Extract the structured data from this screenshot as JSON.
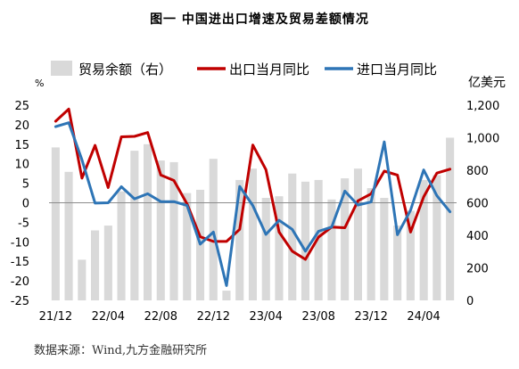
{
  "chart_data": {
    "type": "bar",
    "title": "图一  中国进出口增速及贸易差额情况",
    "source": "数据来源：Wind,九方金融研究所",
    "left_axis": {
      "unit": "%",
      "ylim": [
        -25,
        25
      ],
      "ticks": [
        "25",
        "20",
        "15",
        "10",
        "5",
        "0",
        "-5",
        "-10",
        "-15",
        "-20",
        "-25"
      ]
    },
    "right_axis": {
      "unit": "亿美元",
      "ylim": [
        0,
        1200
      ],
      "ticks": [
        "1,200",
        "1,000",
        "800",
        "600",
        "400",
        "200",
        "0"
      ]
    },
    "x_tick_labels": [
      "21/12",
      "22/04",
      "22/08",
      "22/12",
      "23/04",
      "23/08",
      "23/12",
      "24/04"
    ],
    "categories": [
      "21/12",
      "22/01",
      "22/02",
      "22/03",
      "22/04",
      "22/05",
      "22/06",
      "22/07",
      "22/08",
      "22/09",
      "22/10",
      "22/11",
      "22/12",
      "23/01",
      "23/02",
      "23/03",
      "23/04",
      "23/05",
      "23/06",
      "23/07",
      "23/08",
      "23/09",
      "23/10",
      "23/11",
      "23/12",
      "24/01",
      "24/02",
      "24/03",
      "24/04",
      "24/05",
      "24/06"
    ],
    "legend": [
      "贸易余额（右）",
      "出口当月同比",
      "进口当月同比"
    ],
    "series": [
      {
        "name": "贸易余额（右）",
        "type": "bar",
        "axis": "right",
        "color": "#d9d9d9",
        "values": [
          940,
          790,
          250,
          430,
          460,
          670,
          920,
          960,
          860,
          850,
          660,
          680,
          870,
          60,
          740,
          810,
          630,
          640,
          780,
          730,
          740,
          620,
          750,
          810,
          690,
          630,
          460,
          550,
          740,
          770,
          1000
        ]
      },
      {
        "name": "出口当月同比",
        "type": "line",
        "axis": "left",
        "color": "#c00000",
        "values": [
          20.9,
          24,
          6.3,
          14.7,
          3.9,
          16.9,
          17,
          18,
          7.1,
          5.7,
          -0.3,
          -8.7,
          -9.9,
          -9.9,
          -6.8,
          14.8,
          8.5,
          -7.5,
          -12.4,
          -14.5,
          -8.8,
          -6.2,
          -6.4,
          0.5,
          2.3,
          8.1,
          7.1,
          -7.5,
          1.5,
          7.6,
          8.6
        ]
      },
      {
        "name": "进口当月同比",
        "type": "line",
        "axis": "left",
        "color": "#2e75b6",
        "values": [
          19.5,
          20.5,
          11,
          -0.1,
          0,
          4.1,
          1,
          2.3,
          0.3,
          0.3,
          -0.7,
          -10.6,
          -7.5,
          -21.2,
          4.2,
          -0.7,
          -8.1,
          -4.5,
          -6.8,
          -12.4,
          -7.3,
          -6.2,
          3,
          -0.6,
          0.2,
          15.6,
          -8.2,
          -1.9,
          8.4,
          1.8,
          -2.3
        ]
      }
    ]
  }
}
